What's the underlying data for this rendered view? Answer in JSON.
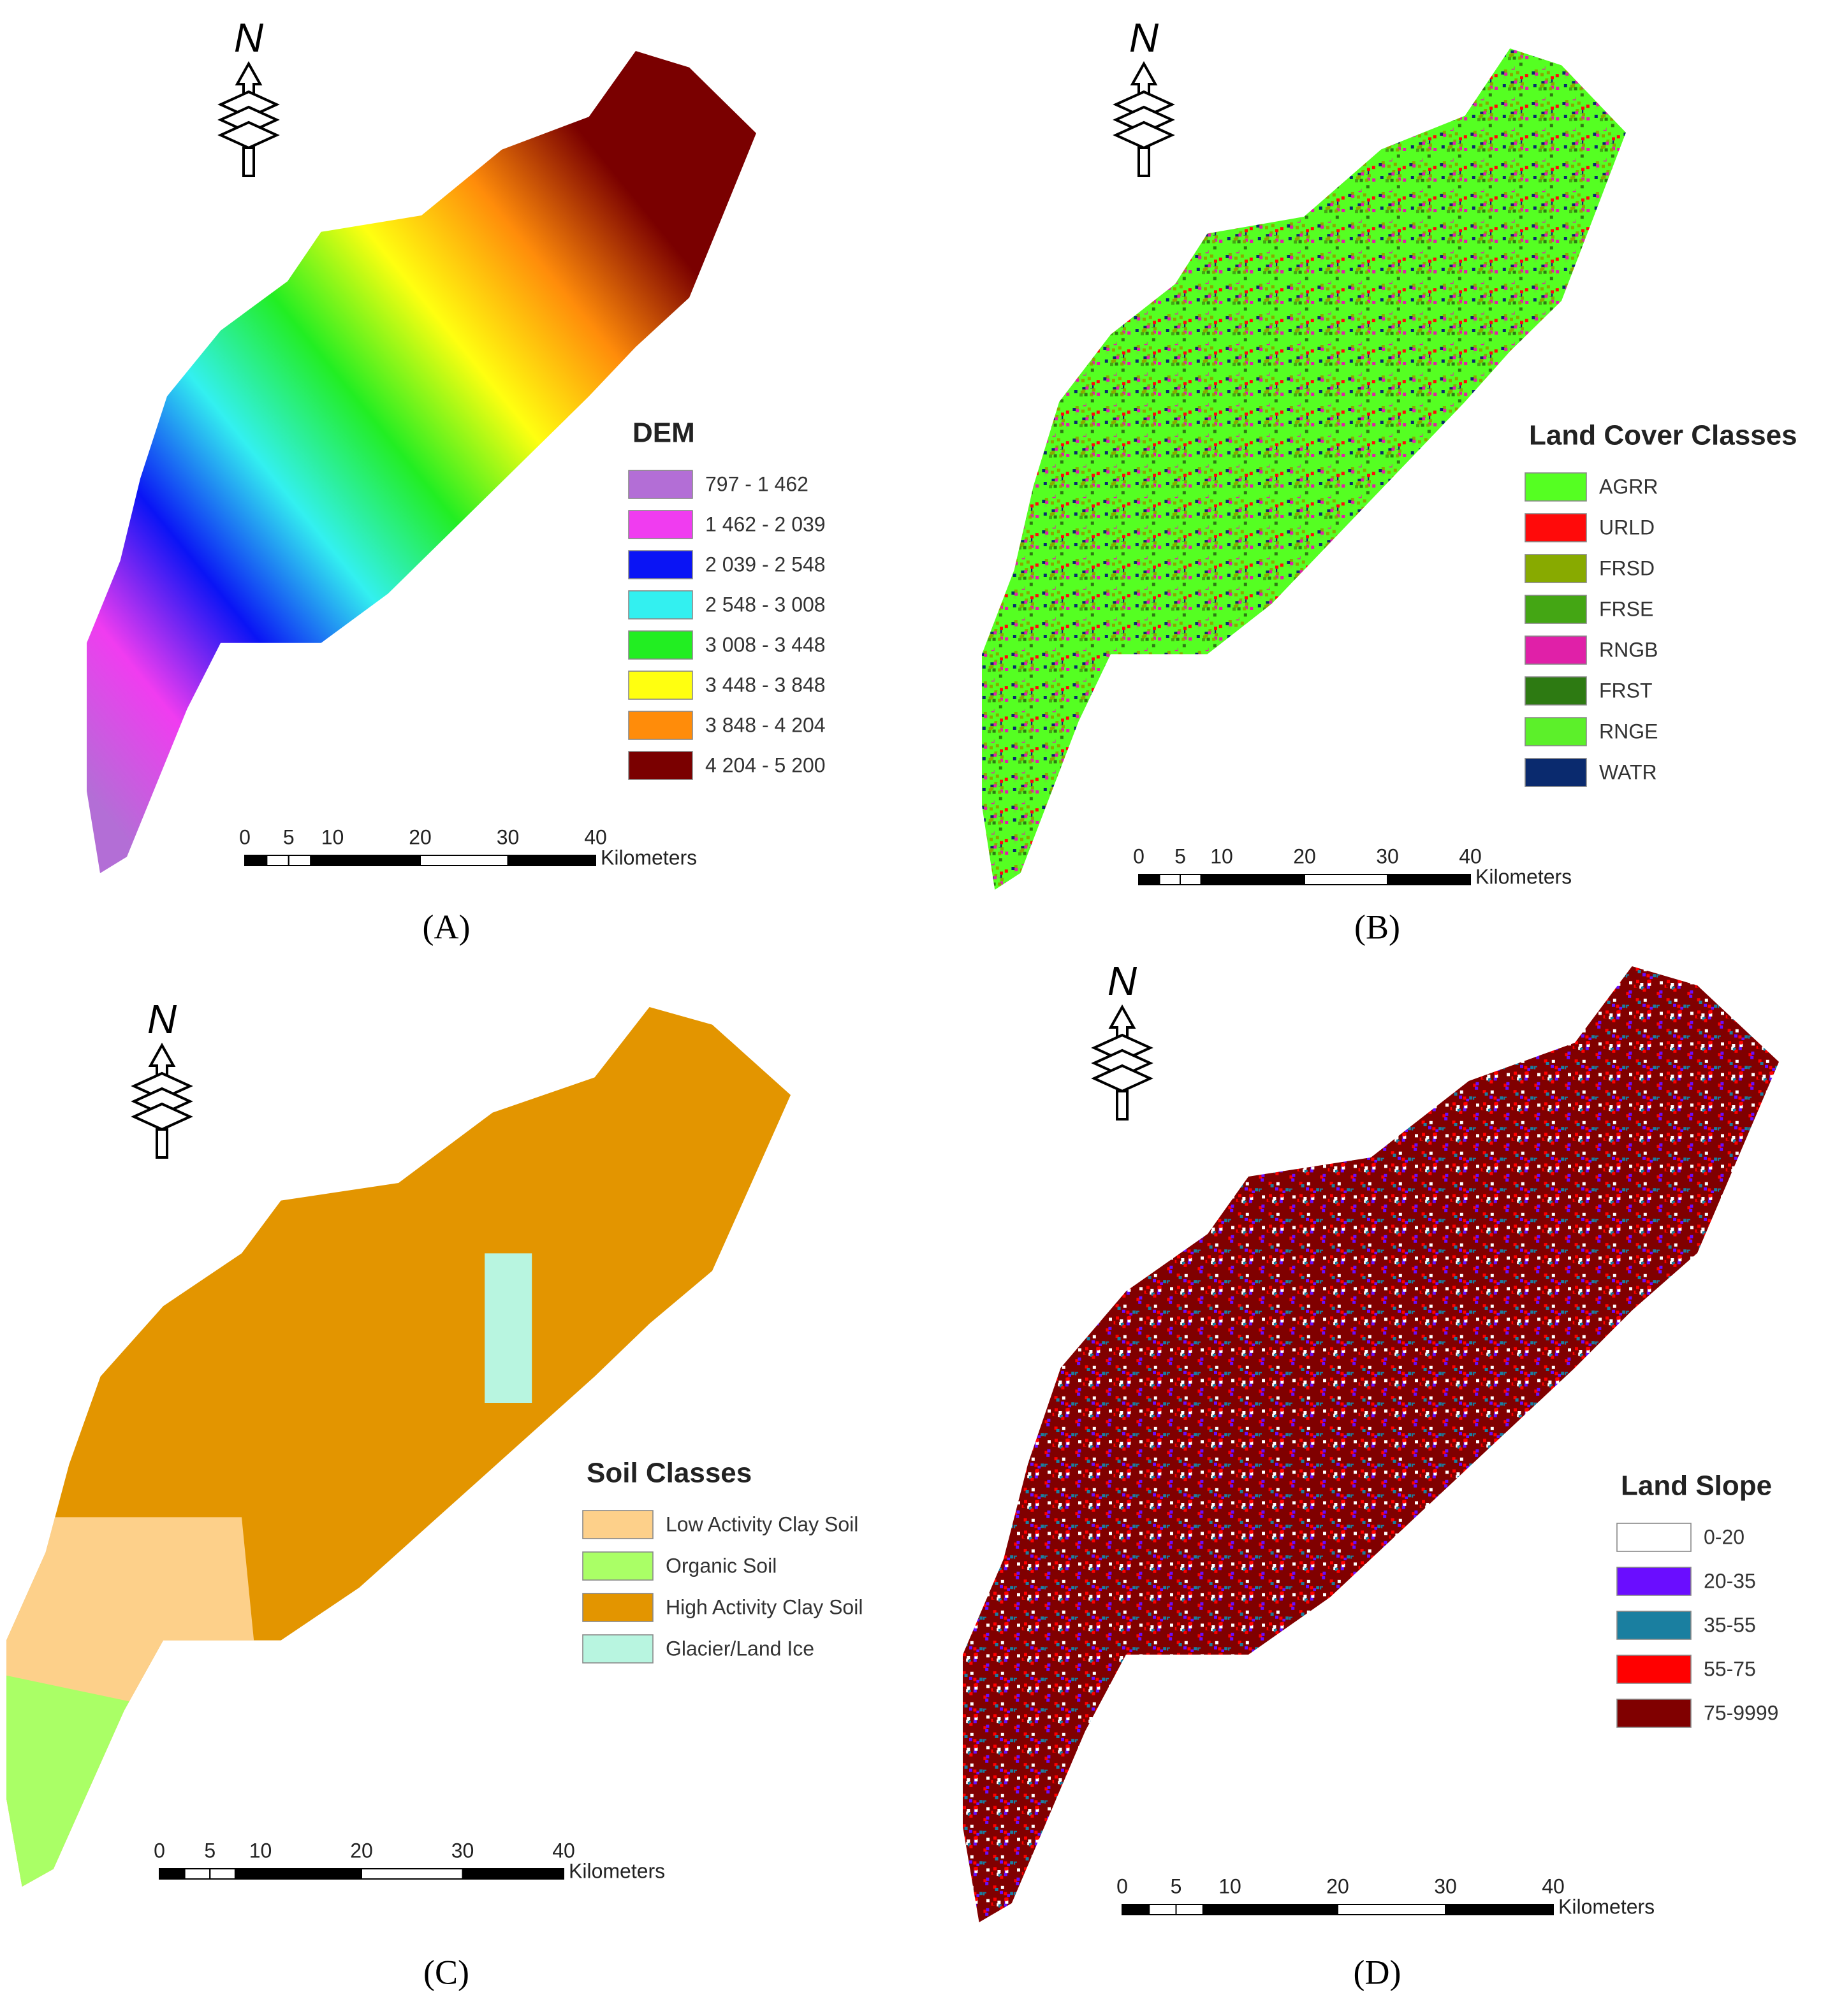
{
  "panels": [
    {
      "label": "(A)",
      "north": "N",
      "legend": {
        "title": "DEM",
        "items": [
          {
            "label": "797 - 1 462",
            "color": "#b36ed6"
          },
          {
            "label": "1 462 - 2 039",
            "color": "#f03cf0"
          },
          {
            "label": "2 039 - 2 548",
            "color": "#0a14f5"
          },
          {
            "label": "2 548 - 3 008",
            "color": "#33f0f0"
          },
          {
            "label": "3 008 - 3 448",
            "color": "#22ee22"
          },
          {
            "label": "3 448 - 3 848",
            "color": "#ffff10"
          },
          {
            "label": "3 848 - 4 204",
            "color": "#ff8c0a"
          },
          {
            "label": "4 204 - 5 200",
            "color": "#7a0000"
          }
        ]
      },
      "scale_bar": {
        "ticks": [
          0,
          5,
          10,
          20,
          30,
          40
        ],
        "unit": "Kilometers"
      }
    },
    {
      "label": "(B)",
      "north": "N",
      "legend": {
        "title": "Land Cover Classes",
        "items": [
          {
            "label": "AGRR",
            "color": "#55ff22"
          },
          {
            "label": "URLD",
            "color": "#ff0a0a"
          },
          {
            "label": "FRSD",
            "color": "#88aa00"
          },
          {
            "label": "FRSE",
            "color": "#44a614"
          },
          {
            "label": "RNGB",
            "color": "#e020a8"
          },
          {
            "label": "FRST",
            "color": "#2d7a12"
          },
          {
            "label": "RNGE",
            "color": "#5cf02a"
          },
          {
            "label": "WATR",
            "color": "#0a2a6e"
          }
        ]
      },
      "scale_bar": {
        "ticks": [
          0,
          5,
          10,
          20,
          30,
          40
        ],
        "unit": "Kilometers"
      }
    },
    {
      "label": "(C)",
      "north": "N",
      "legend": {
        "title": "Soil Classes",
        "items": [
          {
            "label": "Low Activity Clay Soil",
            "color": "#fdd08a"
          },
          {
            "label": "Organic Soil",
            "color": "#aaff66"
          },
          {
            "label": "High Activity Clay Soil",
            "color": "#e39500"
          },
          {
            "label": "Glacier/Land Ice",
            "color": "#b8f5e0"
          }
        ]
      },
      "scale_bar": {
        "ticks": [
          0,
          5,
          10,
          20,
          30,
          40
        ],
        "unit": "Kilometers"
      }
    },
    {
      "label": "(D)",
      "north": "N",
      "legend": {
        "title": "Land Slope",
        "items": [
          {
            "label": "0-20",
            "color": "#ffffff"
          },
          {
            "label": "20-35",
            "color": "#6a0dff"
          },
          {
            "label": "35-55",
            "color": "#1a7fa0"
          },
          {
            "label": "55-75",
            "color": "#ff0000"
          },
          {
            "label": "75-9999",
            "color": "#800000"
          }
        ]
      },
      "scale_bar": {
        "ticks": [
          0,
          5,
          10,
          20,
          30,
          40
        ],
        "unit": "Kilometers"
      }
    }
  ]
}
